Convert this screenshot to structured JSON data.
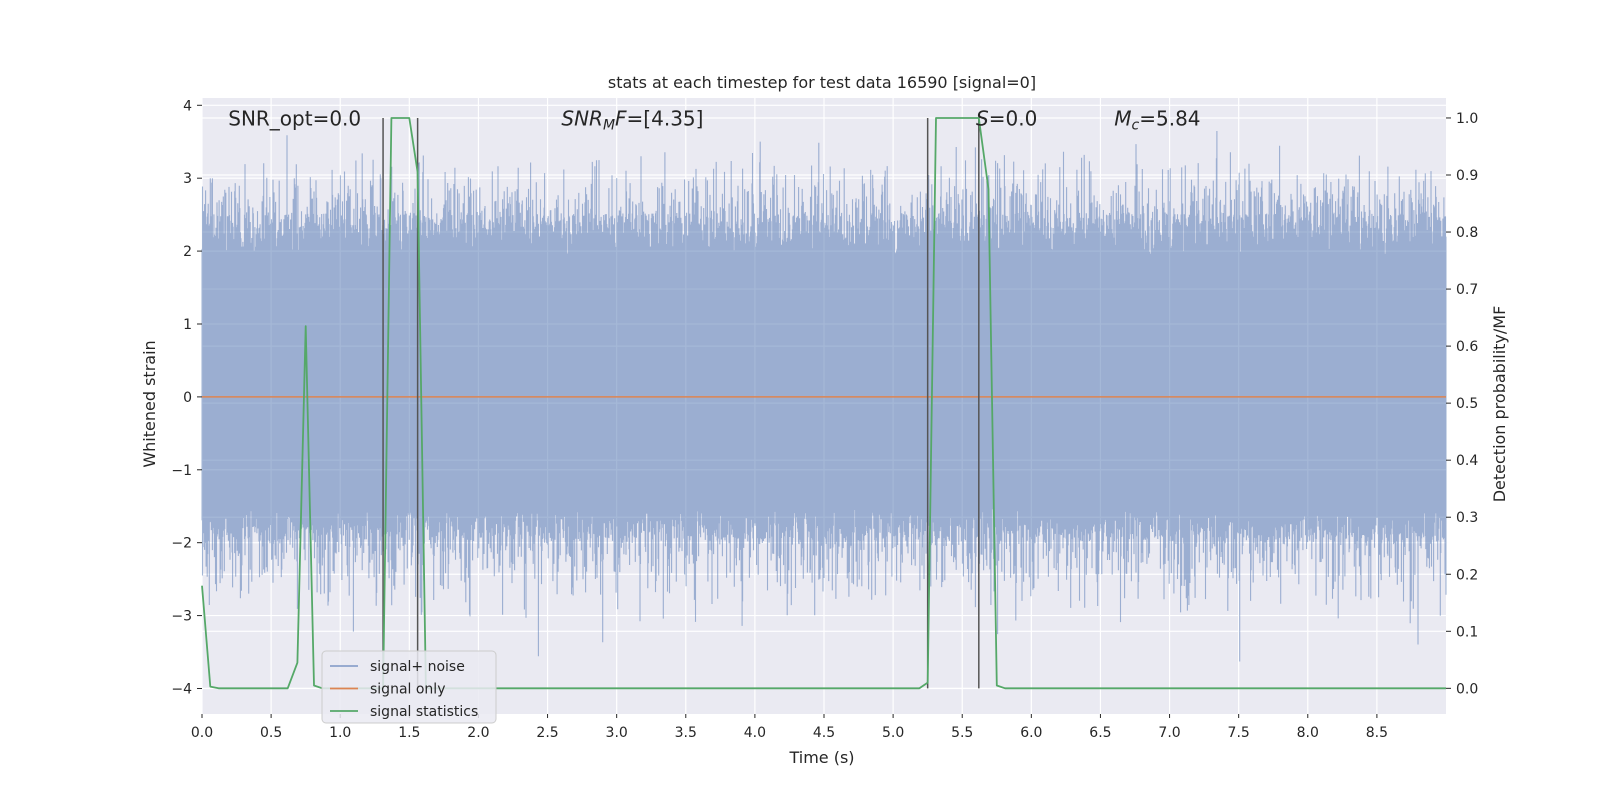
{
  "chart_data": {
    "type": "line",
    "title": "stats at each timestep for test data 16590 [signal=0]",
    "xlabel": "Time (s)",
    "ylabel_left": "Whitened strain",
    "ylabel_right": "Detection probability/MF",
    "xlim": [
      0.0,
      9.0
    ],
    "ylim_left": [
      -4.35,
      4.1
    ],
    "ylim_right": [
      -0.045,
      1.035
    ],
    "x_ticks": [
      0.0,
      0.5,
      1.0,
      1.5,
      2.0,
      2.5,
      3.0,
      3.5,
      4.0,
      4.5,
      5.0,
      5.5,
      6.0,
      6.5,
      7.0,
      7.5,
      8.0,
      8.5
    ],
    "x_tick_labels": [
      "0.0",
      "0.5",
      "1.0",
      "1.5",
      "2.0",
      "2.5",
      "3.0",
      "3.5",
      "4.0",
      "4.5",
      "5.0",
      "5.5",
      "6.0",
      "6.5",
      "7.0",
      "7.5",
      "8.0",
      "8.5"
    ],
    "y_left_ticks": [
      -4,
      -3,
      -2,
      -1,
      0,
      1,
      2,
      3,
      4
    ],
    "y_left_tick_labels": [
      "−4",
      "−3",
      "−2",
      "−1",
      "0",
      "1",
      "2",
      "3",
      "4"
    ],
    "y_right_ticks": [
      0.0,
      0.1,
      0.2,
      0.3,
      0.4,
      0.5,
      0.6,
      0.7,
      0.8,
      0.9,
      1.0
    ],
    "y_right_tick_labels": [
      "0.0",
      "0.1",
      "0.2",
      "0.3",
      "0.4",
      "0.5",
      "0.6",
      "0.7",
      "0.8",
      "0.9",
      "1.0"
    ],
    "grid": true,
    "legend_position": "lower-left",
    "series": [
      {
        "name": "signal+ noise",
        "axis": "left",
        "color": "#4c72b0",
        "style": "dense noise, approx. range -3.7 to 3.7",
        "envelope": {
          "upper": 3.7,
          "lower": -3.7,
          "typical_upper": 2.3,
          "typical_lower": -1.8
        }
      },
      {
        "name": "signal only",
        "axis": "left",
        "color": "#dd8452",
        "x": [
          0.0,
          9.0
        ],
        "y": [
          0.0,
          0.0
        ]
      },
      {
        "name": "signal statistics",
        "axis": "right",
        "color": "#55a868",
        "x": [
          0.0,
          0.06,
          0.12,
          0.18,
          0.25,
          0.31,
          0.37,
          0.44,
          0.5,
          0.56,
          0.62,
          0.69,
          0.75,
          0.81,
          0.87,
          0.94,
          1.0,
          1.06,
          1.12,
          1.19,
          1.25,
          1.31,
          1.37,
          1.44,
          1.5,
          1.56,
          1.62,
          1.69,
          1.75,
          1.81,
          1.87,
          1.94,
          2.0,
          2.5,
          3.0,
          3.5,
          4.0,
          4.5,
          5.0,
          5.19,
          5.25,
          5.31,
          5.37,
          5.44,
          5.5,
          5.56,
          5.62,
          5.69,
          5.75,
          5.81,
          5.87,
          5.94,
          6.0,
          6.5,
          7.0,
          7.5,
          8.0,
          8.5,
          9.0
        ],
        "y": [
          0.18,
          0.003,
          0.0,
          0.0,
          0.0,
          0.0,
          0.0,
          0.0,
          0.0,
          0.0,
          0.0,
          0.045,
          0.635,
          0.005,
          0.0,
          0.0,
          0.0,
          0.0,
          0.0,
          0.0,
          0.0,
          0.0,
          1.0,
          1.0,
          1.0,
          0.905,
          0.0,
          0.0,
          0.0,
          0.0,
          0.0,
          0.0,
          0.0,
          0.0,
          0.0,
          0.0,
          0.0,
          0.0,
          0.0,
          0.0,
          0.01,
          1.0,
          1.0,
          1.0,
          1.0,
          1.0,
          1.0,
          0.875,
          0.005,
          0.0,
          0.0,
          0.0,
          0.0,
          0.0,
          0.0,
          0.0,
          0.0,
          0.0,
          0.0
        ]
      }
    ],
    "vlines": {
      "color": "#555555",
      "x": [
        1.31,
        1.56,
        5.25,
        5.62
      ],
      "y_right": [
        0.0,
        1.0
      ]
    },
    "annotations": [
      {
        "text_parts": [
          {
            "t": "SNR_opt=0.0",
            "style": "normal"
          }
        ],
        "x": 0.19,
        "y": 3.72
      },
      {
        "text_parts": [
          {
            "t": "SNR",
            "style": "italic"
          },
          {
            "t": "M",
            "style": "italic-sub"
          },
          {
            "t": "F",
            "style": "italic"
          },
          {
            "t": "=[4.35]",
            "style": "normal"
          }
        ],
        "x": 2.6,
        "y": 3.72
      },
      {
        "text_parts": [
          {
            "t": "S",
            "style": "italic"
          },
          {
            "t": "=0.0",
            "style": "normal"
          }
        ],
        "x": 5.6,
        "y": 3.72
      },
      {
        "text_parts": [
          {
            "t": "M",
            "style": "italic"
          },
          {
            "t": "c",
            "style": "italic-sub"
          },
          {
            "t": "=5.84",
            "style": "normal"
          }
        ],
        "x": 6.6,
        "y": 3.72
      }
    ]
  },
  "colors": {
    "plot_background": "#eaeaf2",
    "grid": "#ffffff",
    "legend_background": "#eaeaf2",
    "legend_border": "#cccccc"
  }
}
